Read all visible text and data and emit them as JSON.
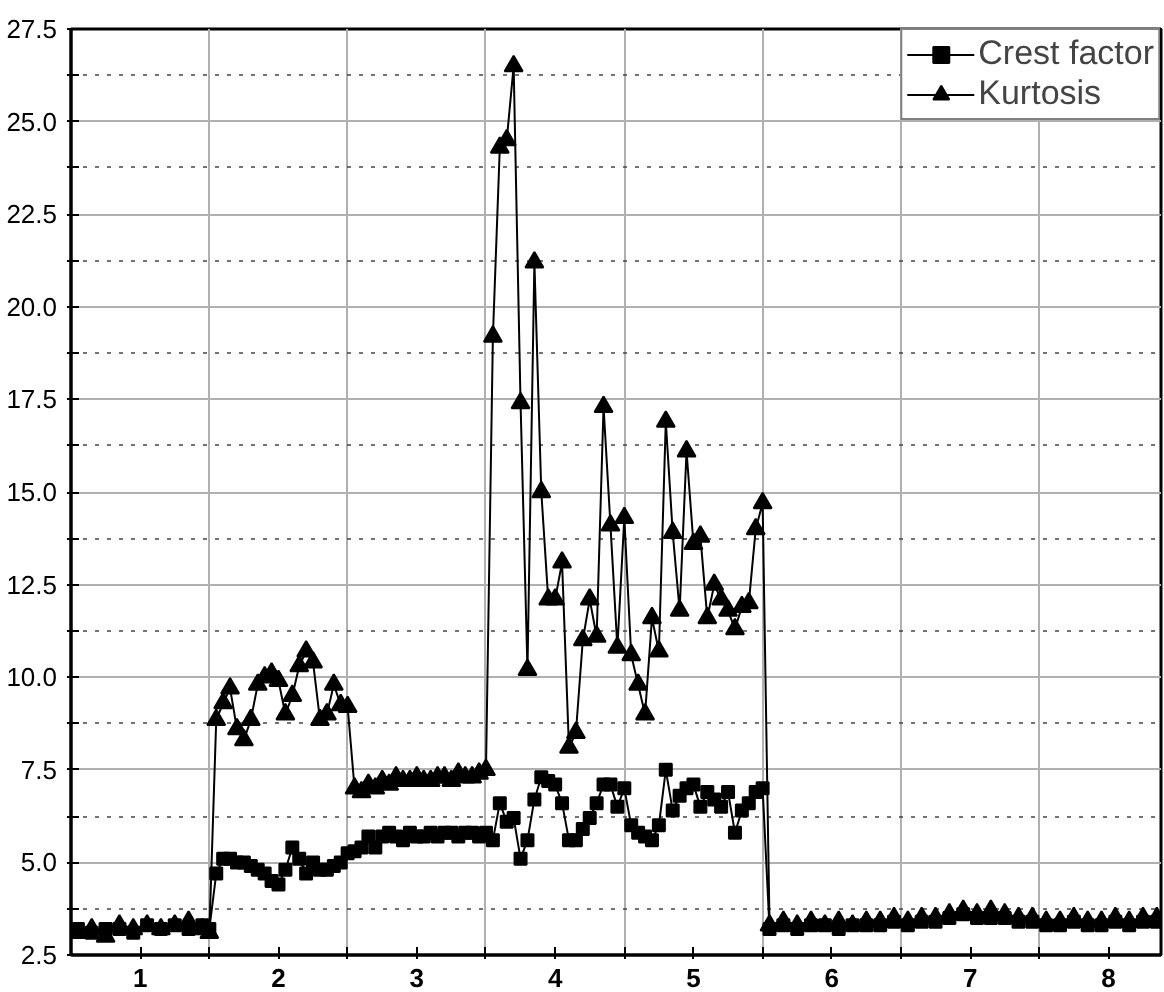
{
  "chart_data": {
    "type": "line",
    "x": [
      0.55,
      0.65,
      0.75,
      0.85,
      0.95,
      1.05,
      1.15,
      1.25,
      1.35,
      1.45,
      1.5,
      1.55,
      1.6,
      1.65,
      1.7,
      1.75,
      1.8,
      1.85,
      1.9,
      1.95,
      2.0,
      2.05,
      2.1,
      2.15,
      2.2,
      2.25,
      2.3,
      2.35,
      2.4,
      2.45,
      2.5,
      2.55,
      2.6,
      2.65,
      2.7,
      2.75,
      2.8,
      2.85,
      2.9,
      2.95,
      3.0,
      3.05,
      3.1,
      3.15,
      3.2,
      3.25,
      3.3,
      3.35,
      3.4,
      3.45,
      3.5,
      3.55,
      3.6,
      3.65,
      3.7,
      3.75,
      3.8,
      3.85,
      3.9,
      3.95,
      4.0,
      4.05,
      4.1,
      4.15,
      4.2,
      4.25,
      4.3,
      4.35,
      4.4,
      4.45,
      4.5,
      4.55,
      4.6,
      4.65,
      4.7,
      4.75,
      4.8,
      4.85,
      4.9,
      4.95,
      5.0,
      5.05,
      5.1,
      5.15,
      5.2,
      5.25,
      5.3,
      5.35,
      5.4,
      5.45,
      5.5,
      5.55,
      5.65,
      5.75,
      5.85,
      5.95,
      6.05,
      6.15,
      6.25,
      6.35,
      6.45,
      6.55,
      6.65,
      6.75,
      6.85,
      6.95,
      7.05,
      7.15,
      7.25,
      7.35,
      7.45,
      7.55,
      7.65,
      7.75,
      7.85,
      7.95,
      8.05,
      8.15,
      8.25,
      8.35
    ],
    "series": [
      {
        "name": "Crest factor",
        "color": "#000000",
        "marker": "square",
        "values": [
          3.2,
          3.1,
          3.2,
          3.2,
          3.1,
          3.3,
          3.2,
          3.3,
          3.2,
          3.3,
          3.2,
          4.7,
          5.1,
          5.1,
          5.0,
          5.0,
          4.9,
          4.8,
          4.7,
          4.5,
          4.4,
          4.8,
          5.4,
          5.1,
          4.7,
          5.0,
          4.8,
          4.8,
          4.9,
          5.0,
          5.25,
          5.3,
          5.4,
          5.7,
          5.4,
          5.7,
          5.8,
          5.7,
          5.6,
          5.8,
          5.7,
          5.7,
          5.8,
          5.7,
          5.8,
          5.8,
          5.7,
          5.8,
          5.8,
          5.7,
          5.8,
          5.6,
          6.6,
          6.1,
          6.2,
          5.1,
          5.6,
          6.7,
          7.3,
          7.2,
          7.1,
          6.6,
          5.6,
          5.6,
          5.9,
          6.2,
          6.6,
          7.1,
          7.1,
          6.5,
          7.0,
          6.0,
          5.8,
          5.7,
          5.6,
          6.0,
          7.5,
          6.4,
          6.8,
          7.0,
          7.1,
          6.5,
          6.9,
          6.7,
          6.5,
          6.9,
          5.8,
          6.4,
          6.6,
          6.9,
          7.0,
          3.2,
          3.3,
          3.2,
          3.3,
          3.3,
          3.2,
          3.3,
          3.3,
          3.3,
          3.4,
          3.3,
          3.4,
          3.4,
          3.5,
          3.6,
          3.5,
          3.5,
          3.5,
          3.4,
          3.4,
          3.3,
          3.3,
          3.4,
          3.3,
          3.3,
          3.4,
          3.3,
          3.4,
          3.4
        ]
      },
      {
        "name": "Kurtosis",
        "color": "#000000",
        "marker": "triangle",
        "values": [
          3.1,
          3.2,
          3.0,
          3.3,
          3.2,
          3.3,
          3.2,
          3.3,
          3.4,
          3.2,
          3.1,
          8.85,
          9.3,
          9.7,
          8.6,
          8.3,
          8.85,
          9.8,
          10.0,
          10.1,
          9.9,
          9.0,
          9.5,
          10.3,
          10.7,
          10.4,
          8.85,
          9.0,
          9.8,
          9.25,
          9.2,
          7.0,
          6.9,
          7.1,
          7.0,
          7.2,
          7.1,
          7.3,
          7.2,
          7.2,
          7.3,
          7.2,
          7.2,
          7.3,
          7.3,
          7.2,
          7.4,
          7.3,
          7.3,
          7.4,
          7.5,
          19.2,
          24.3,
          24.5,
          26.5,
          17.4,
          10.2,
          21.2,
          15.0,
          12.1,
          12.1,
          13.1,
          8.1,
          8.5,
          11.0,
          12.1,
          11.1,
          17.3,
          14.1,
          10.8,
          14.3,
          10.6,
          9.8,
          9.0,
          11.6,
          10.7,
          16.9,
          13.9,
          11.8,
          16.1,
          13.6,
          13.8,
          11.6,
          12.5,
          12.1,
          11.8,
          11.3,
          11.9,
          12.0,
          14.0,
          14.7,
          3.3,
          3.4,
          3.3,
          3.4,
          3.3,
          3.4,
          3.3,
          3.4,
          3.4,
          3.5,
          3.4,
          3.5,
          3.5,
          3.6,
          3.7,
          3.6,
          3.7,
          3.6,
          3.5,
          3.5,
          3.4,
          3.4,
          3.5,
          3.4,
          3.4,
          3.5,
          3.4,
          3.5,
          3.5
        ]
      }
    ],
    "xlim": [
      0.5,
      8.38
    ],
    "xticks": [
      {
        "value": 1,
        "label": "1"
      },
      {
        "value": 1.5,
        "label": null
      },
      {
        "value": 2,
        "label": "2"
      },
      {
        "value": 2.5,
        "label": null
      },
      {
        "value": 3,
        "label": "3"
      },
      {
        "value": 3.5,
        "label": null
      },
      {
        "value": 4,
        "label": "4"
      },
      {
        "value": 4.5,
        "label": null
      },
      {
        "value": 5,
        "label": "5"
      },
      {
        "value": 5.5,
        "label": null
      },
      {
        "value": 6,
        "label": "6"
      },
      {
        "value": 6.5,
        "label": null
      },
      {
        "value": 7,
        "label": "7"
      },
      {
        "value": 7.5,
        "label": null
      },
      {
        "value": 8,
        "label": "8"
      }
    ],
    "ylim": [
      2.5,
      27.5
    ],
    "yticks": [
      {
        "value": 2.5,
        "label": "2.5"
      },
      {
        "value": 3.75,
        "label": null
      },
      {
        "value": 5,
        "label": "5.0"
      },
      {
        "value": 6.25,
        "label": null
      },
      {
        "value": 7.5,
        "label": "7.5"
      },
      {
        "value": 8.75,
        "label": null
      },
      {
        "value": 10,
        "label": "10.0"
      },
      {
        "value": 11.25,
        "label": null
      },
      {
        "value": 12.5,
        "label": "12.5"
      },
      {
        "value": 13.75,
        "label": null
      },
      {
        "value": 15,
        "label": "15.0"
      },
      {
        "value": 16.25,
        "label": null
      },
      {
        "value": 17.5,
        "label": "17.5"
      },
      {
        "value": 18.75,
        "label": null
      },
      {
        "value": 20,
        "label": "20.0"
      },
      {
        "value": 21.25,
        "label": null
      },
      {
        "value": 22.5,
        "label": "22.5"
      },
      {
        "value": 23.75,
        "label": null
      },
      {
        "value": 25,
        "label": "25.0"
      },
      {
        "value": 26.25,
        "label": null
      },
      {
        "value": 27.5,
        "label": "27.5"
      }
    ],
    "grid": true,
    "legend": "top right",
    "line_style": "solid"
  }
}
